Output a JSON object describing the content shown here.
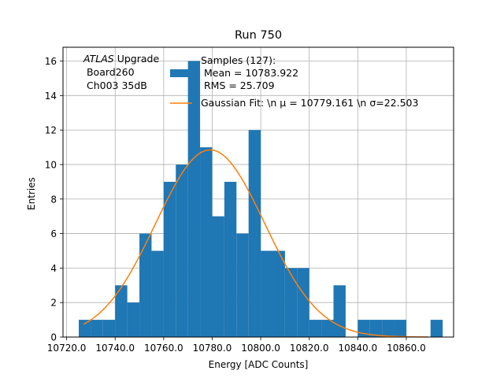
{
  "chart_data": {
    "type": "bar",
    "title": "Run 750",
    "xlabel": "Energy [ADC Counts]",
    "ylabel": "Entries",
    "xlim": [
      10718.5,
      10879.5
    ],
    "ylim": [
      0,
      16.8
    ],
    "grid": true,
    "x_ticks": [
      10720,
      10740,
      10760,
      10780,
      10800,
      10820,
      10840,
      10860
    ],
    "x_tick_labels": [
      "10720.0",
      "10740.0",
      "10760.0",
      "10780.0",
      "10800.0",
      "10820.0",
      "10840.0",
      "10860.0"
    ],
    "y_ticks": [
      0,
      2,
      4,
      6,
      8,
      10,
      12,
      14,
      16
    ],
    "y_tick_labels": [
      "0",
      "2",
      "4",
      "6",
      "8",
      "10",
      "12",
      "14",
      "16"
    ],
    "bin_width": 5,
    "bin_start": 10725,
    "counts": [
      1,
      1,
      1,
      3,
      2,
      6,
      5,
      9,
      10,
      16,
      11,
      7,
      9,
      6,
      12,
      5,
      5,
      4,
      4,
      1,
      1,
      3,
      0,
      1,
      1,
      1,
      1,
      0,
      0,
      1
    ],
    "bar_color": "#1f77b4",
    "fit": {
      "mu": 10779.161,
      "sigma": 22.503,
      "amplitude": 10.85,
      "x_range": [
        10727,
        10869
      ],
      "color": "#ff7f0e"
    },
    "legend": {
      "placement": "upper-center",
      "entries": [
        {
          "kind": "bar",
          "lines": [
            "Samples (127):",
            " Mean = 10783.922",
            " RMS = 25.709"
          ]
        },
        {
          "kind": "line",
          "lines": [
            "Gaussian Fit: \\n μ = 10779.161 \\n σ=22.503"
          ]
        }
      ]
    },
    "annotation": {
      "experiment": "ATLAS",
      "suffix": " Upgrade",
      "line2": " Board260",
      "line3": " Ch003 35dB"
    }
  }
}
